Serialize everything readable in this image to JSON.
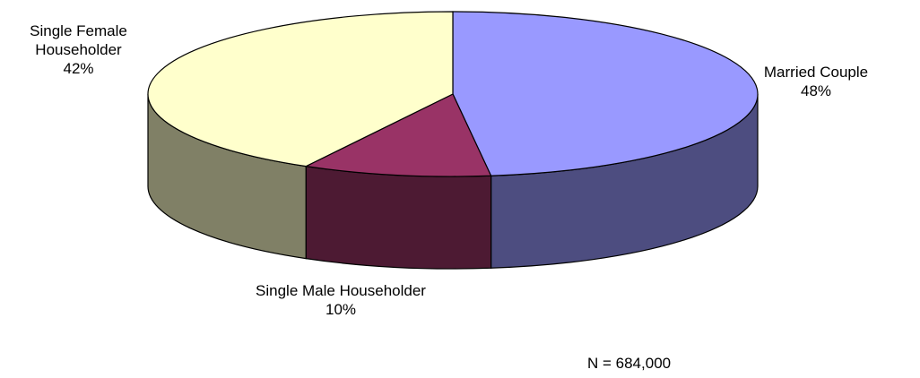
{
  "chart_data": {
    "type": "pie",
    "categories": [
      "Married Couple",
      "Single Male Householder",
      "Single Female Householder"
    ],
    "values": [
      48,
      10,
      42
    ],
    "value_labels": [
      "48%",
      "10%",
      "42%"
    ],
    "colors": [
      "#9999ff",
      "#993366",
      "#ffffcc"
    ],
    "annotation": "N = 684,000"
  }
}
